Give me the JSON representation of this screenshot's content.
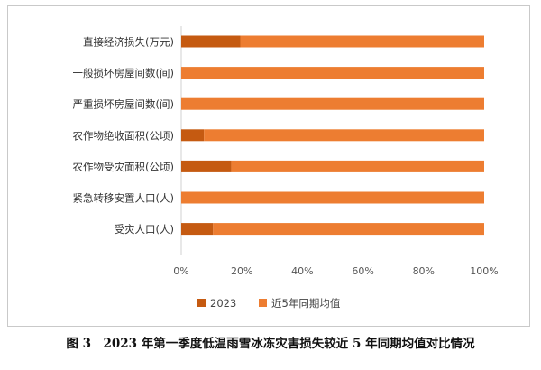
{
  "chart_data": {
    "type": "bar",
    "orientation": "horizontal",
    "stacked": true,
    "categories": [
      "直接经济损失(万元)",
      "一般损坏房屋间数(间)",
      "严重损坏房屋间数(间)",
      "农作物绝收面积(公顷)",
      "农作物受灾面积(公顷)",
      "紧急转移安置人口(人)",
      "受灾人口(人)"
    ],
    "series": [
      {
        "name": "2023",
        "color": "#c55a11",
        "values": [
          19.5,
          0,
          0,
          7.5,
          16.5,
          0,
          10.5
        ]
      },
      {
        "name": "近5年同期均值",
        "color": "#ed7d31",
        "values": [
          80.5,
          100,
          100,
          92.5,
          83.5,
          100,
          89.5
        ]
      }
    ],
    "xlim": [
      0,
      100
    ],
    "xticks": [
      "0%",
      "20%",
      "40%",
      "60%",
      "80%",
      "100%"
    ],
    "grid": false,
    "legend": "bottom"
  },
  "caption": "图 3　2023 年第一季度低温雨雪冰冻灾害损失较近 5 年同期均值对比情况"
}
